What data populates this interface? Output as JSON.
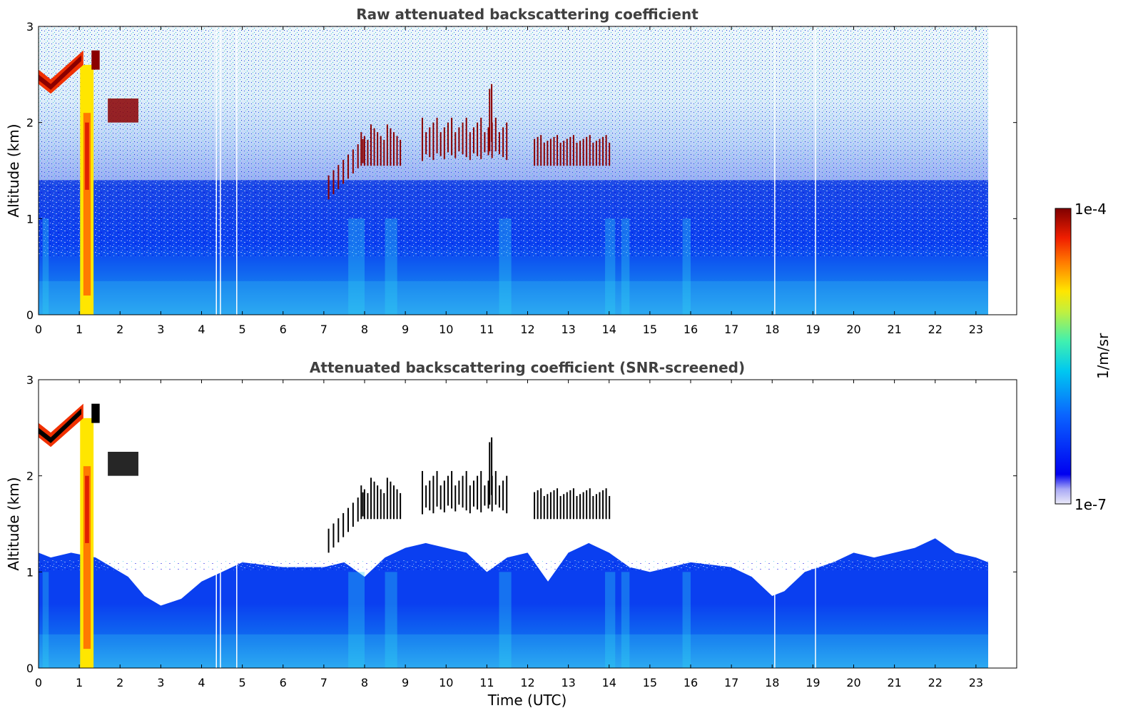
{
  "chart_data": [
    {
      "type": "heatmap",
      "title": "Raw attenuated backscattering coefficient",
      "xlabel": "",
      "ylabel": "Altitude (km)",
      "xlim": [
        0,
        24
      ],
      "ylim": [
        0,
        3
      ],
      "x_ticks": [
        "0",
        "1",
        "2",
        "3",
        "4",
        "5",
        "6",
        "7",
        "8",
        "9",
        "10",
        "11",
        "12",
        "13",
        "14",
        "15",
        "16",
        "17",
        "18",
        "19",
        "20",
        "21",
        "22",
        "23"
      ],
      "y_ticks": [
        "0",
        "1",
        "2",
        "3"
      ],
      "data_end_time": 23.3,
      "gap_times": [
        4.35,
        4.45,
        4.85,
        18.05,
        19.05
      ],
      "screened": false
    },
    {
      "type": "heatmap",
      "title": "Attenuated backscattering coefficient (SNR-screened)",
      "xlabel": "Time (UTC)",
      "ylabel": "Altitude (km)",
      "xlim": [
        0,
        24
      ],
      "ylim": [
        0,
        3
      ],
      "x_ticks": [
        "0",
        "1",
        "2",
        "3",
        "4",
        "5",
        "6",
        "7",
        "8",
        "9",
        "10",
        "11",
        "12",
        "13",
        "14",
        "15",
        "16",
        "17",
        "18",
        "19",
        "20",
        "21",
        "22",
        "23"
      ],
      "y_ticks": [
        "0",
        "1",
        "2",
        "3"
      ],
      "data_end_time": 23.3,
      "gap_times": [
        4.35,
        4.45,
        4.85,
        18.05,
        19.05
      ],
      "screened": true
    }
  ],
  "colorbar": {
    "label": "1/m/sr",
    "max_label": "1e-4",
    "min_label": "1e-7",
    "scale": "log"
  }
}
